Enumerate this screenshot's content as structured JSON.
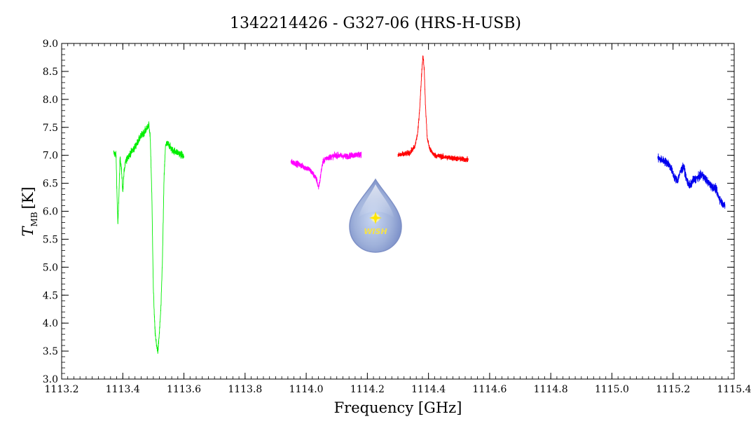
{
  "chart_data": {
    "type": "line",
    "title": "1342214426 - G327-06 (HRS-H-USB)",
    "xlabel": "Frequency [GHz]",
    "ylabel_main": "T",
    "ylabel_sub": "MB",
    "ylabel_unit": "[K]",
    "xlim": [
      1113.2,
      1115.4
    ],
    "ylim": [
      3.0,
      9.0
    ],
    "x_ticks": [
      "1113.2",
      "1113.4",
      "1113.6",
      "1113.8",
      "1114.0",
      "1114.2",
      "1114.4",
      "1114.6",
      "1114.8",
      "1115.0",
      "1115.2",
      "1115.4"
    ],
    "y_ticks": [
      "3.0",
      "3.5",
      "4.0",
      "4.5",
      "5.0",
      "5.5",
      "6.0",
      "6.5",
      "7.0",
      "7.5",
      "8.0",
      "8.5",
      "9.0"
    ],
    "logo_text": "WISH",
    "series": [
      {
        "color": "#00ee00",
        "x_range": [
          1113.37,
          1113.6
        ],
        "noise": 0.06,
        "points": [
          [
            1113.37,
            7.05
          ],
          [
            1113.378,
            7.0
          ],
          [
            1113.381,
            6.3
          ],
          [
            1113.384,
            5.75
          ],
          [
            1113.388,
            6.4
          ],
          [
            1113.391,
            6.95
          ],
          [
            1113.395,
            6.8
          ],
          [
            1113.4,
            6.35
          ],
          [
            1113.404,
            6.7
          ],
          [
            1113.41,
            6.9
          ],
          [
            1113.42,
            7.0
          ],
          [
            1113.44,
            7.15
          ],
          [
            1113.46,
            7.35
          ],
          [
            1113.475,
            7.45
          ],
          [
            1113.485,
            7.55
          ],
          [
            1113.49,
            7.3
          ],
          [
            1113.495,
            6.3
          ],
          [
            1113.5,
            4.6
          ],
          [
            1113.505,
            3.9
          ],
          [
            1113.51,
            3.6
          ],
          [
            1113.515,
            3.5
          ],
          [
            1113.52,
            3.85
          ],
          [
            1113.525,
            4.3
          ],
          [
            1113.53,
            5.2
          ],
          [
            1113.535,
            6.6
          ],
          [
            1113.54,
            7.2
          ],
          [
            1113.55,
            7.2
          ],
          [
            1113.56,
            7.1
          ],
          [
            1113.58,
            7.05
          ],
          [
            1113.6,
            6.98
          ]
        ]
      },
      {
        "color": "#ff00ff",
        "x_range": [
          1113.95,
          1114.18
        ],
        "noise": 0.05,
        "points": [
          [
            1113.95,
            6.88
          ],
          [
            1113.97,
            6.85
          ],
          [
            1113.99,
            6.8
          ],
          [
            1114.01,
            6.75
          ],
          [
            1114.025,
            6.65
          ],
          [
            1114.035,
            6.55
          ],
          [
            1114.04,
            6.42
          ],
          [
            1114.045,
            6.55
          ],
          [
            1114.05,
            6.75
          ],
          [
            1114.055,
            6.88
          ],
          [
            1114.065,
            6.95
          ],
          [
            1114.08,
            6.97
          ],
          [
            1114.1,
            7.0
          ],
          [
            1114.13,
            6.98
          ],
          [
            1114.15,
            7.0
          ],
          [
            1114.18,
            7.02
          ]
        ]
      },
      {
        "color": "#ff0000",
        "x_range": [
          1114.3,
          1114.53
        ],
        "noise": 0.045,
        "points": [
          [
            1114.3,
            7.0
          ],
          [
            1114.32,
            7.02
          ],
          [
            1114.34,
            7.05
          ],
          [
            1114.355,
            7.15
          ],
          [
            1114.365,
            7.4
          ],
          [
            1114.372,
            7.9
          ],
          [
            1114.378,
            8.5
          ],
          [
            1114.382,
            8.8
          ],
          [
            1114.386,
            8.55
          ],
          [
            1114.39,
            7.9
          ],
          [
            1114.396,
            7.3
          ],
          [
            1114.405,
            7.1
          ],
          [
            1114.42,
            7.0
          ],
          [
            1114.45,
            6.97
          ],
          [
            1114.48,
            6.95
          ],
          [
            1114.51,
            6.93
          ],
          [
            1114.53,
            6.92
          ]
        ]
      },
      {
        "color": "#0000ee",
        "x_range": [
          1115.15,
          1115.37
        ],
        "noise": 0.07,
        "points": [
          [
            1115.15,
            6.95
          ],
          [
            1115.17,
            6.9
          ],
          [
            1115.185,
            6.85
          ],
          [
            1115.195,
            6.75
          ],
          [
            1115.205,
            6.6
          ],
          [
            1115.215,
            6.55
          ],
          [
            1115.225,
            6.72
          ],
          [
            1115.235,
            6.8
          ],
          [
            1115.245,
            6.55
          ],
          [
            1115.255,
            6.45
          ],
          [
            1115.265,
            6.55
          ],
          [
            1115.28,
            6.6
          ],
          [
            1115.295,
            6.65
          ],
          [
            1115.31,
            6.55
          ],
          [
            1115.325,
            6.45
          ],
          [
            1115.34,
            6.4
          ],
          [
            1115.35,
            6.25
          ],
          [
            1115.36,
            6.15
          ],
          [
            1115.37,
            6.1
          ]
        ]
      }
    ]
  }
}
